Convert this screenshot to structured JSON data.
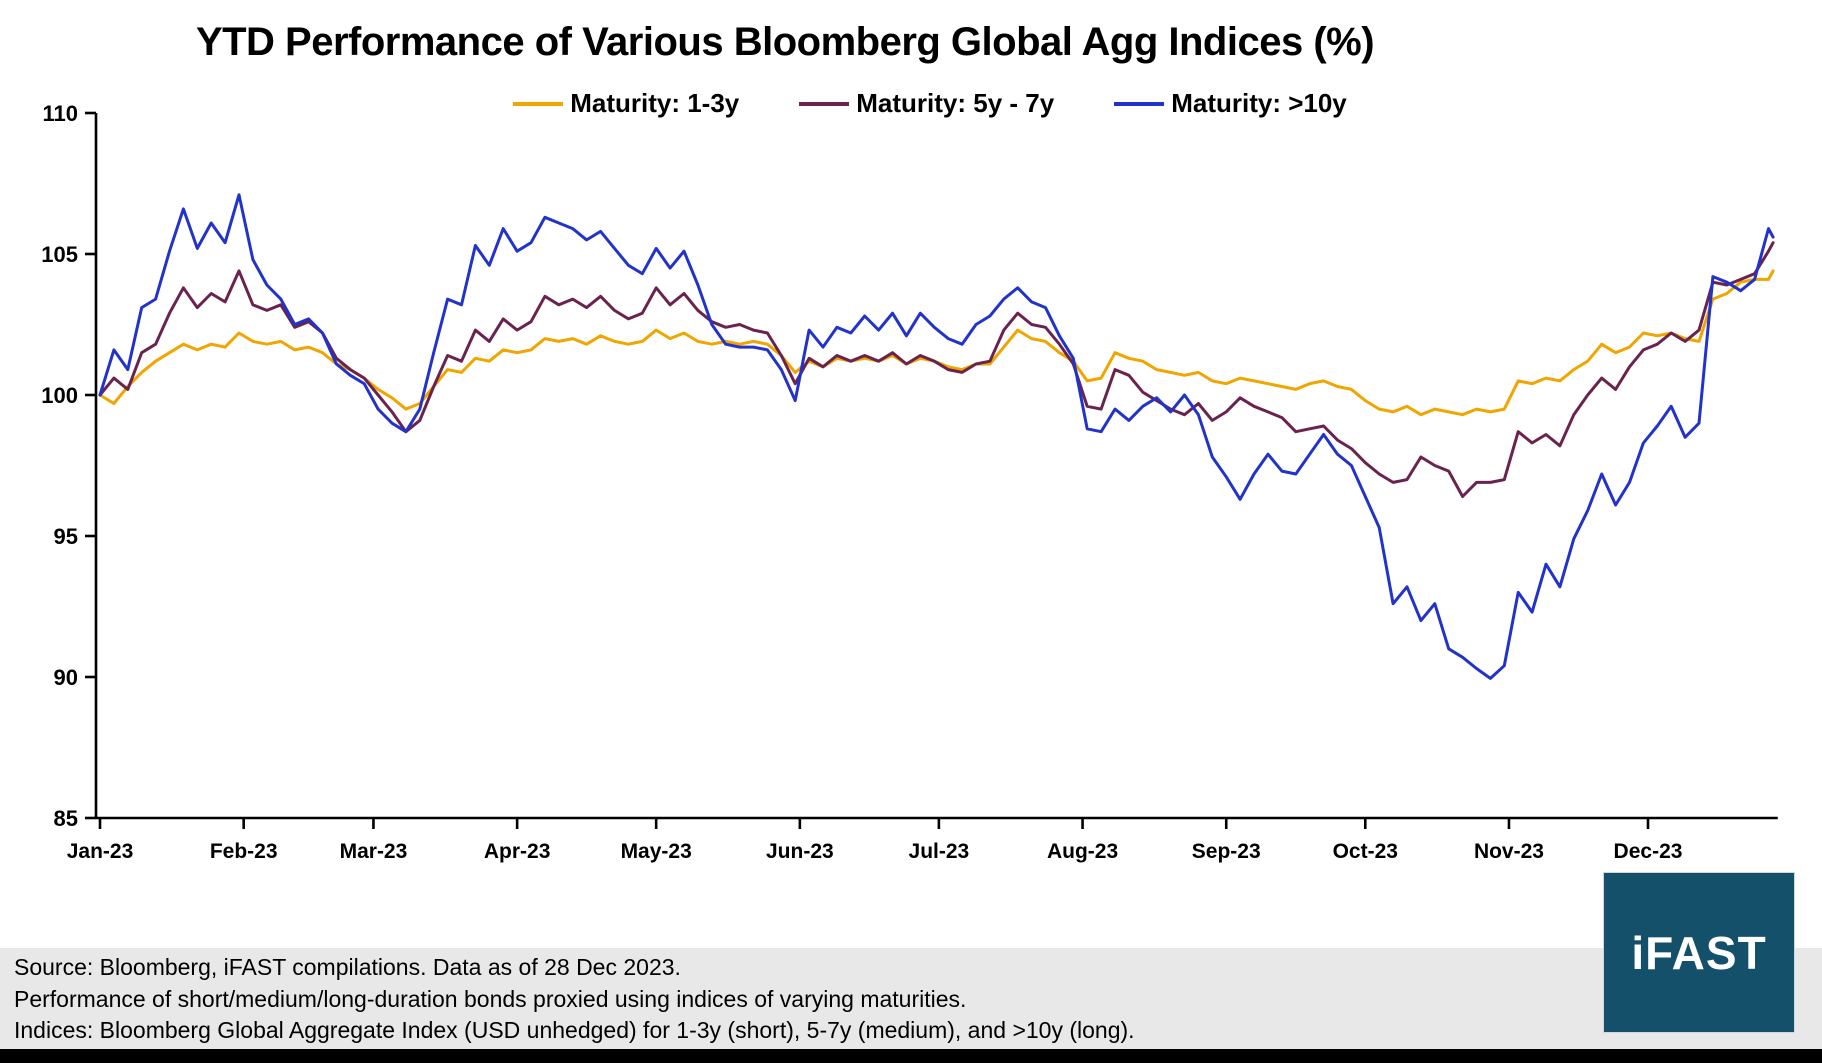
{
  "title": "YTD Performance of Various Bloomberg Global Agg Indices (%)",
  "footer": {
    "line1": "Source: Bloomberg, iFAST compilations. Data as of 28 Dec 2023.",
    "line2": "Performance of short/medium/long-duration bonds proxied using indices of varying maturities.",
    "line3": "Indices: Bloomberg Global Aggregate Index (USD unhedged) for 1-3y (short), 5-7y (medium), and >10y (long)."
  },
  "logo": {
    "text": "iFAST",
    "bg_color": "#14506a",
    "text_color": "#ffffff"
  },
  "colors": {
    "axis": "#000000",
    "footer_band": "#e9e8e8",
    "bottom_bar": "#000000"
  },
  "chart_data": {
    "type": "line",
    "title": "YTD Performance of Various Bloomberg Global Agg Indices (%)",
    "xlabel": "",
    "ylabel": "",
    "ylim": [
      85,
      110
    ],
    "xlim_days": [
      0,
      362
    ],
    "grid": false,
    "legend_position": "top",
    "y_ticks": [
      110,
      105,
      100,
      95,
      90,
      85
    ],
    "x_ticks": [
      {
        "label": "Jan-23",
        "day": 0
      },
      {
        "label": "Feb-23",
        "day": 31
      },
      {
        "label": "Mar-23",
        "day": 59
      },
      {
        "label": "Apr-23",
        "day": 90
      },
      {
        "label": "May-23",
        "day": 120
      },
      {
        "label": "Jun-23",
        "day": 151
      },
      {
        "label": "Jul-23",
        "day": 181
      },
      {
        "label": "Aug-23",
        "day": 212
      },
      {
        "label": "Sep-23",
        "day": 243
      },
      {
        "label": "Oct-23",
        "day": 273
      },
      {
        "label": "Nov-23",
        "day": 304
      },
      {
        "label": "Dec-23",
        "day": 334
      }
    ],
    "x_days": [
      0,
      3,
      6,
      9,
      12,
      15,
      18,
      21,
      24,
      27,
      30,
      33,
      36,
      39,
      42,
      45,
      48,
      51,
      54,
      57,
      60,
      63,
      66,
      69,
      72,
      75,
      78,
      81,
      84,
      87,
      90,
      93,
      96,
      99,
      102,
      105,
      108,
      111,
      114,
      117,
      120,
      123,
      126,
      129,
      132,
      135,
      138,
      141,
      144,
      147,
      150,
      153,
      156,
      159,
      162,
      165,
      168,
      171,
      174,
      177,
      180,
      183,
      186,
      189,
      192,
      195,
      198,
      201,
      204,
      207,
      210,
      213,
      216,
      219,
      222,
      225,
      228,
      231,
      234,
      237,
      240,
      243,
      246,
      249,
      252,
      255,
      258,
      261,
      264,
      267,
      270,
      273,
      276,
      279,
      282,
      285,
      288,
      291,
      294,
      297,
      300,
      303,
      306,
      309,
      312,
      315,
      318,
      321,
      324,
      327,
      330,
      333,
      336,
      339,
      342,
      345,
      348,
      351,
      354,
      357,
      360,
      361
    ],
    "series": [
      {
        "name": "Maturity: 1-3y",
        "color": "#f0a500",
        "values": [
          100.0,
          99.7,
          100.3,
          100.8,
          101.2,
          101.5,
          101.8,
          101.6,
          101.8,
          101.7,
          102.2,
          101.9,
          101.8,
          101.9,
          101.6,
          101.7,
          101.5,
          101.1,
          100.9,
          100.6,
          100.2,
          99.9,
          99.5,
          99.7,
          100.3,
          100.9,
          100.8,
          101.3,
          101.2,
          101.6,
          101.5,
          101.6,
          102.0,
          101.9,
          102.0,
          101.8,
          102.1,
          101.9,
          101.8,
          101.9,
          102.3,
          102.0,
          102.2,
          101.9,
          101.8,
          101.9,
          101.8,
          101.9,
          101.8,
          101.4,
          100.8,
          101.2,
          101.0,
          101.3,
          101.2,
          101.3,
          101.2,
          101.4,
          101.1,
          101.3,
          101.2,
          101.0,
          100.9,
          101.1,
          101.1,
          101.7,
          102.3,
          102.0,
          101.9,
          101.5,
          101.2,
          100.5,
          100.6,
          101.5,
          101.3,
          101.2,
          100.9,
          100.8,
          100.7,
          100.8,
          100.5,
          100.4,
          100.6,
          100.5,
          100.4,
          100.3,
          100.2,
          100.4,
          100.5,
          100.3,
          100.2,
          99.8,
          99.5,
          99.4,
          99.6,
          99.3,
          99.5,
          99.4,
          99.3,
          99.5,
          99.4,
          99.5,
          100.5,
          100.4,
          100.6,
          100.5,
          100.9,
          101.2,
          101.8,
          101.5,
          101.7,
          102.2,
          102.1,
          102.2,
          102.0,
          101.9,
          103.4,
          103.6,
          104.0,
          104.1,
          104.1,
          104.4
        ]
      },
      {
        "name": "Maturity: 5y - 7y",
        "color": "#69234e",
        "values": [
          100.0,
          100.6,
          100.2,
          101.5,
          101.8,
          102.9,
          103.8,
          103.1,
          103.6,
          103.3,
          104.4,
          103.2,
          103.0,
          103.2,
          102.4,
          102.6,
          102.2,
          101.3,
          100.9,
          100.6,
          100.0,
          99.4,
          98.7,
          99.1,
          100.3,
          101.4,
          101.2,
          102.3,
          101.9,
          102.7,
          102.3,
          102.6,
          103.5,
          103.2,
          103.4,
          103.1,
          103.5,
          103.0,
          102.7,
          102.9,
          103.8,
          103.2,
          103.6,
          103.0,
          102.6,
          102.4,
          102.5,
          102.3,
          102.2,
          101.4,
          100.4,
          101.3,
          101.0,
          101.4,
          101.2,
          101.4,
          101.2,
          101.5,
          101.1,
          101.4,
          101.2,
          100.9,
          100.8,
          101.1,
          101.2,
          102.3,
          102.9,
          102.5,
          102.4,
          101.8,
          101.1,
          99.6,
          99.5,
          100.9,
          100.7,
          100.1,
          99.8,
          99.5,
          99.3,
          99.7,
          99.1,
          99.4,
          99.9,
          99.6,
          99.4,
          99.2,
          98.7,
          98.8,
          98.9,
          98.4,
          98.1,
          97.6,
          97.2,
          96.9,
          97.0,
          97.8,
          97.5,
          97.3,
          96.4,
          96.9,
          96.9,
          97.0,
          98.7,
          98.3,
          98.6,
          98.2,
          99.3,
          100.0,
          100.6,
          100.2,
          101.0,
          101.6,
          101.8,
          102.2,
          101.9,
          102.3,
          104.0,
          103.9,
          104.1,
          104.3,
          105.1,
          105.4
        ]
      },
      {
        "name": "Maturity: >10y",
        "color": "#2233c9",
        "values": [
          100.0,
          101.6,
          100.9,
          103.1,
          103.4,
          105.1,
          106.6,
          105.2,
          106.1,
          105.4,
          107.1,
          104.8,
          103.9,
          103.4,
          102.5,
          102.7,
          102.2,
          101.1,
          100.7,
          100.4,
          99.5,
          99.0,
          98.7,
          99.5,
          101.5,
          103.4,
          103.2,
          105.3,
          104.6,
          105.9,
          105.1,
          105.4,
          106.3,
          106.1,
          105.9,
          105.5,
          105.8,
          105.2,
          104.6,
          104.3,
          105.2,
          104.5,
          105.1,
          103.9,
          102.5,
          101.8,
          101.7,
          101.7,
          101.6,
          100.9,
          99.8,
          102.3,
          101.7,
          102.4,
          102.2,
          102.8,
          102.3,
          102.9,
          102.1,
          102.9,
          102.4,
          102.0,
          101.8,
          102.5,
          102.8,
          103.4,
          103.8,
          103.3,
          103.1,
          102.1,
          101.3,
          98.8,
          98.7,
          99.5,
          99.1,
          99.6,
          99.9,
          99.4,
          100.0,
          99.3,
          97.8,
          97.1,
          96.3,
          97.2,
          97.9,
          97.3,
          97.2,
          97.9,
          98.6,
          97.9,
          97.5,
          96.4,
          95.3,
          92.6,
          93.2,
          92.0,
          92.6,
          91.0,
          90.7,
          90.3,
          89.95,
          90.4,
          93.0,
          92.3,
          94.0,
          93.2,
          94.9,
          95.9,
          97.2,
          96.1,
          96.9,
          98.3,
          98.9,
          99.6,
          98.5,
          99.0,
          104.2,
          104.0,
          103.7,
          104.1,
          105.9,
          105.6
        ]
      }
    ]
  }
}
